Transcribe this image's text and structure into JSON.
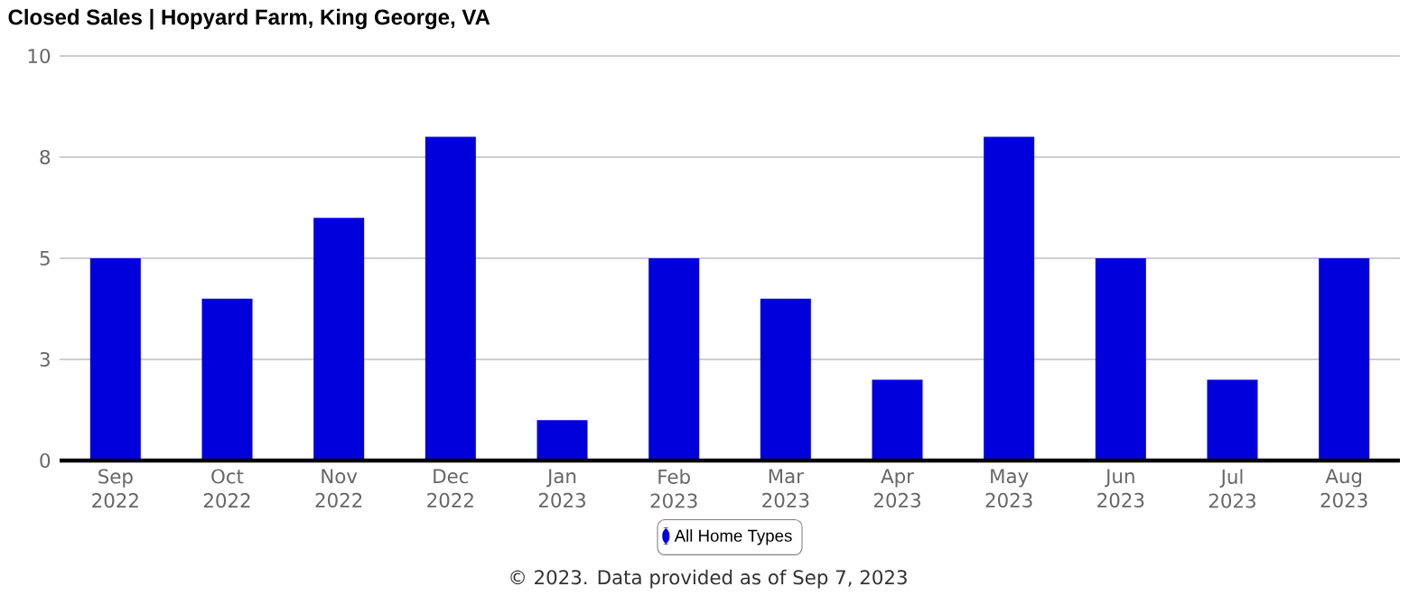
{
  "chart_data": {
    "type": "bar",
    "title": "Closed Sales | Hopyard Farm, King George, VA",
    "categories": [
      "Sep 2022",
      "Oct 2022",
      "Nov 2022",
      "Dec 2022",
      "Jan 2023",
      "Feb 2023",
      "Mar 2023",
      "Apr 2023",
      "May 2023",
      "Jun 2023",
      "Jul 2023",
      "Aug 2023"
    ],
    "series": [
      {
        "name": "All Home Types",
        "color": "#0000dd",
        "values": [
          5,
          4,
          6,
          8,
          1,
          5,
          4,
          2,
          8,
          5,
          2,
          5
        ]
      }
    ],
    "ylim": [
      0,
      10
    ],
    "yticks": [
      0,
      {
        "value": 2.5,
        "label": "3"
      },
      5,
      {
        "value": 7.5,
        "label": "8"
      },
      10
    ],
    "grid": "y",
    "legend": "bottom",
    "annotations": [
      "© 2023. Data provided as of Sep 7, 2023"
    ]
  }
}
